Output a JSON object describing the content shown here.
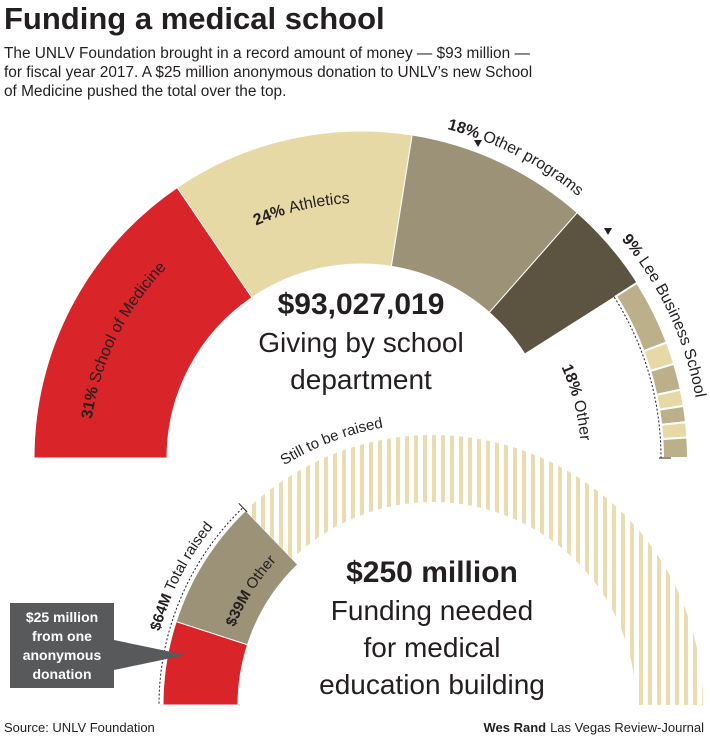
{
  "title": "Funding a medical school",
  "intro": "The UNLV Foundation brought in a record amount of money — $93 million — for fiscal year 2017. A $25 million anonymous donation to UNLV’s new School of Medicine pushed the total over the top.",
  "colors": {
    "red": "#d9252a",
    "light_tan": "#e6d9a6",
    "olive": "#9c9278",
    "dark_olive": "#5c5440",
    "mid_tan": "#bcb08a",
    "text": "#231f20"
  },
  "footer": {
    "source": "Source: UNLV Foundation",
    "credit_name": "Wes Rand",
    "credit_org": "Las Vegas Review-Journal"
  },
  "chart_data": [
    {
      "type": "pie",
      "style": "half-donut",
      "total_label": "$93,027,019",
      "subtitle": "Giving by school department",
      "slices": [
        {
          "pct": "31%",
          "name": "School of Medicine",
          "value": 31,
          "color": "#d9252a"
        },
        {
          "pct": "24%",
          "name": "Athletics",
          "value": 24,
          "color": "#e6d9a6"
        },
        {
          "pct": "18%",
          "name": "Other programs",
          "value": 18,
          "color": "#9c9278"
        },
        {
          "pct": "9%",
          "name": "Lee Business School",
          "value": 9,
          "color": "#5c5440"
        },
        {
          "pct": "18%",
          "name": "Other",
          "value": 18,
          "color": "mixed",
          "parts": [
            {
              "value": 6.5,
              "color": "#bcb08a"
            },
            {
              "value": 2.2,
              "color": "#e6d9a6"
            },
            {
              "value": 2.6,
              "color": "#bcb08a"
            },
            {
              "value": 1.6,
              "color": "#e6d9a6"
            },
            {
              "value": 1.6,
              "color": "#bcb08a"
            },
            {
              "value": 1.5,
              "color": "#e6d9a6"
            },
            {
              "value": 2.0,
              "color": "#bcb08a"
            }
          ]
        }
      ]
    },
    {
      "type": "pie",
      "style": "half-donut-progress",
      "total_label": "$250 million",
      "subtitle": "Funding needed for medical education building",
      "total_value_millions": 250,
      "raised": {
        "label_amount": "$64M",
        "label_text": "Total raised",
        "value_millions": 64
      },
      "slices": [
        {
          "name": "$25 million from one anonymous donation",
          "value_millions": 25,
          "color": "#d9252a"
        },
        {
          "amount": "$39M",
          "name": "Other",
          "value_millions": 39,
          "color": "#9c9278"
        },
        {
          "name": "Still to be raised",
          "value_millions": 186,
          "color": "hatched"
        }
      ],
      "callout": "$25 million from one anonymous donation"
    }
  ]
}
